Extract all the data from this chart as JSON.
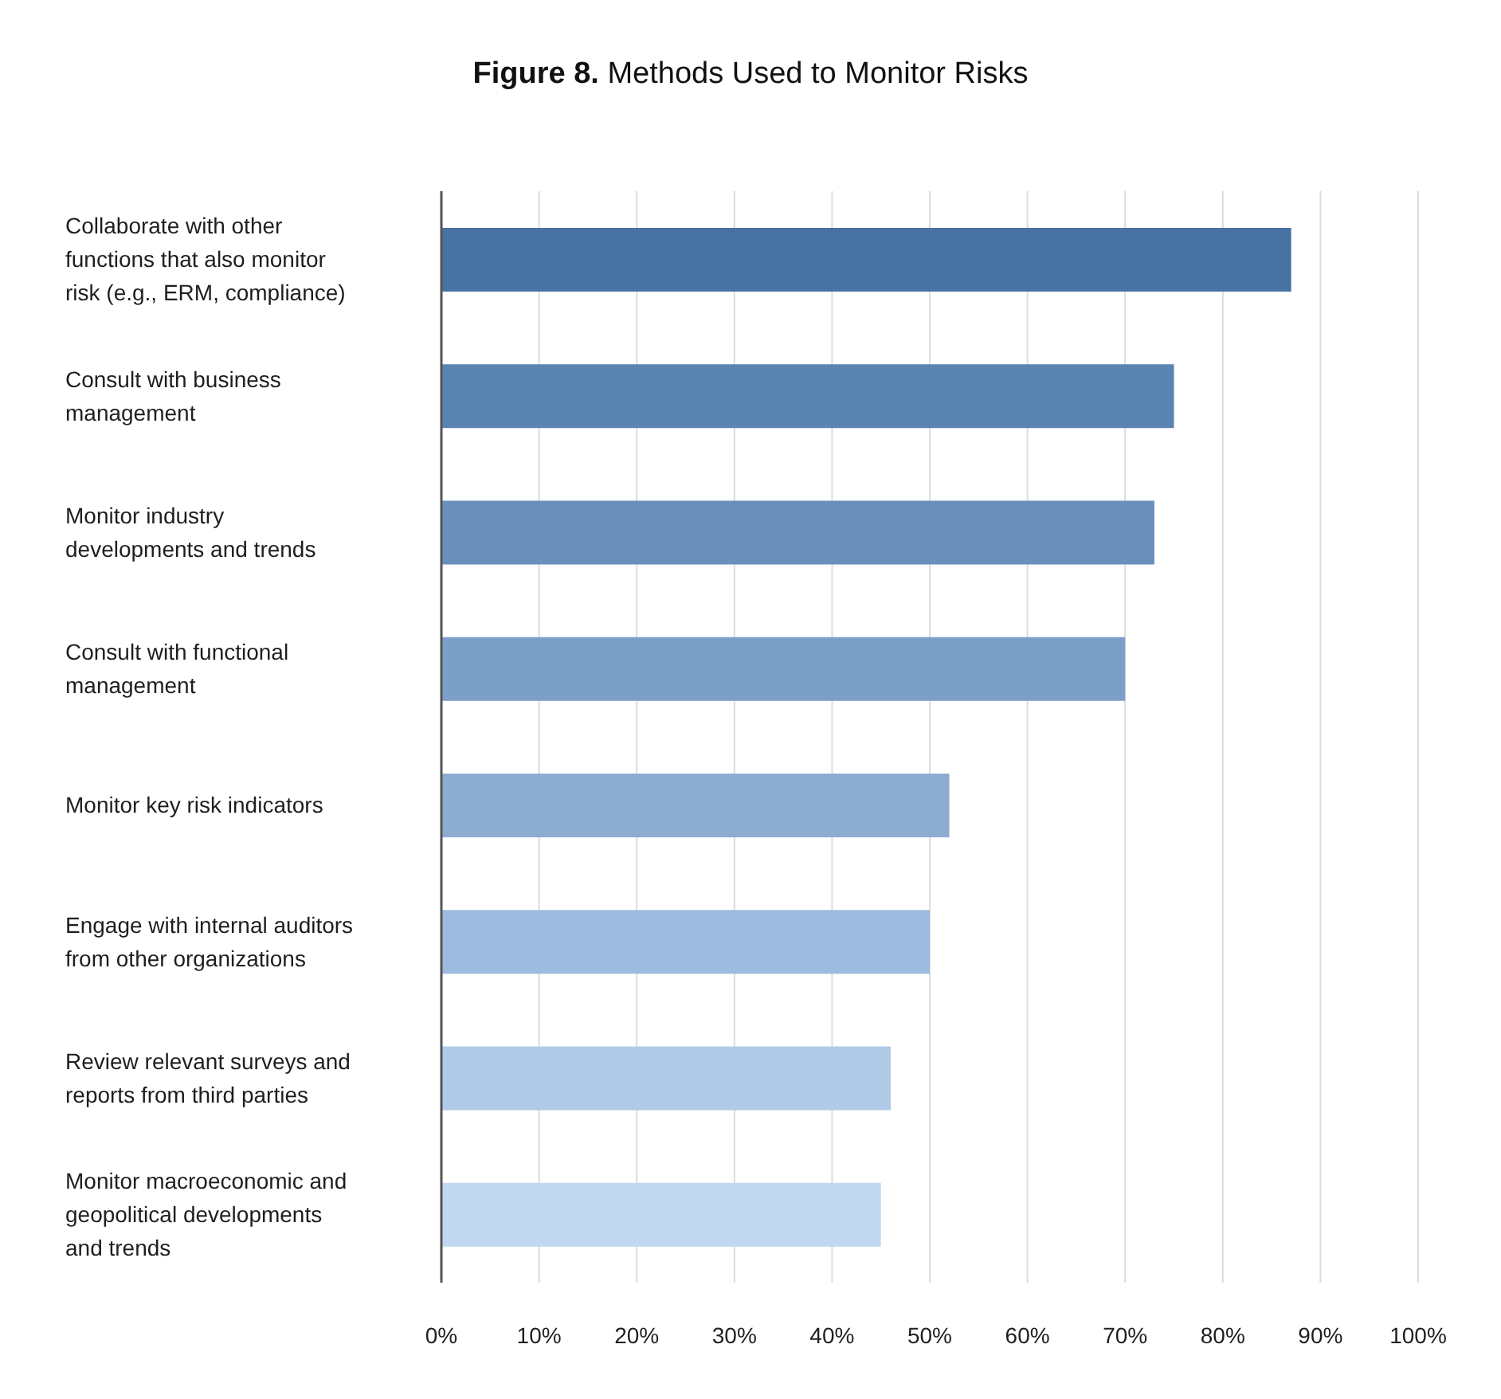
{
  "chart_data": {
    "type": "bar",
    "orientation": "horizontal",
    "title": "Figure 8. Methods Used to Monitor Risks",
    "categories": [
      "Collaborate with other functions that also monitor risk (e.g., ERM, compliance)",
      "Consult with business management",
      "Monitor industry developments and trends",
      "Consult with functional management",
      "Monitor key risk indicators",
      "Engage with internal auditors from other organizations",
      "Review relevant surveys and reports from third parties",
      "Monitor macroeconomic and geopolitical developments and trends"
    ],
    "values": [
      87,
      75,
      73,
      70,
      52,
      50,
      46,
      45
    ],
    "colors": [
      "#4872a3",
      "#5a84b2",
      "#6a8fbb",
      "#7b9fc7",
      "#8cacd2",
      "#9dbbde",
      "#afcbe8",
      "#c1d8f1"
    ],
    "xlim": [
      0,
      100
    ],
    "xticks": [
      {
        "value": 0,
        "label": "0%"
      },
      {
        "value": 10,
        "label": "10%"
      },
      {
        "value": 20,
        "label": "20%"
      },
      {
        "value": 30,
        "label": "30%"
      },
      {
        "value": 40,
        "label": "40%"
      },
      {
        "value": 50,
        "label": "50%"
      },
      {
        "value": 60,
        "label": "60%"
      },
      {
        "value": 70,
        "label": "70%"
      },
      {
        "value": 80,
        "label": "80%"
      },
      {
        "value": 90,
        "label": "90%"
      },
      {
        "value": 100,
        "label": "100%"
      }
    ],
    "grid": "x"
  }
}
